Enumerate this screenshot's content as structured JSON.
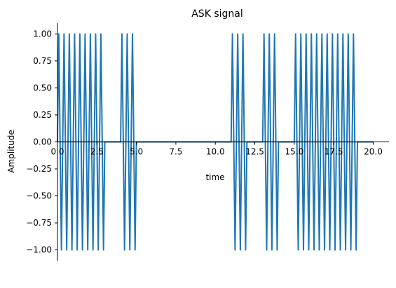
{
  "chart_data": {
    "type": "line",
    "title": "ASK signal",
    "xlabel": "time",
    "ylabel": "Amplitude",
    "xlim": [
      0,
      21
    ],
    "ylim": [
      -1.1,
      1.1
    ],
    "xticks": [
      0.0,
      2.5,
      5.0,
      7.5,
      10.0,
      12.5,
      15.0,
      17.5,
      20.0
    ],
    "xtick_labels": [
      "0.0",
      "2.5",
      "5.0",
      "7.5",
      "10.0",
      "12.5",
      "15.0",
      "17.5",
      "20.0"
    ],
    "yticks": [
      -1.0,
      -0.75,
      -0.5,
      -0.25,
      0.0,
      0.25,
      0.5,
      0.75,
      1.0
    ],
    "ytick_labels": [
      "−1.00",
      "−0.75",
      "−0.50",
      "−0.25",
      "0.00",
      "0.25",
      "0.50",
      "0.75",
      "1.00"
    ],
    "grid": false,
    "spines": "axes through zero; top and right hidden",
    "bits": [
      1,
      1,
      1,
      0,
      1,
      0,
      0,
      0,
      0,
      0,
      0,
      1,
      0,
      1,
      0,
      1,
      1,
      1,
      1,
      0
    ],
    "bit_duration": 1.0,
    "carrier_cycles_per_bit": 3,
    "line_color": "#1f77b4",
    "axis_color": "#000000",
    "baseline_color": "#000000"
  }
}
